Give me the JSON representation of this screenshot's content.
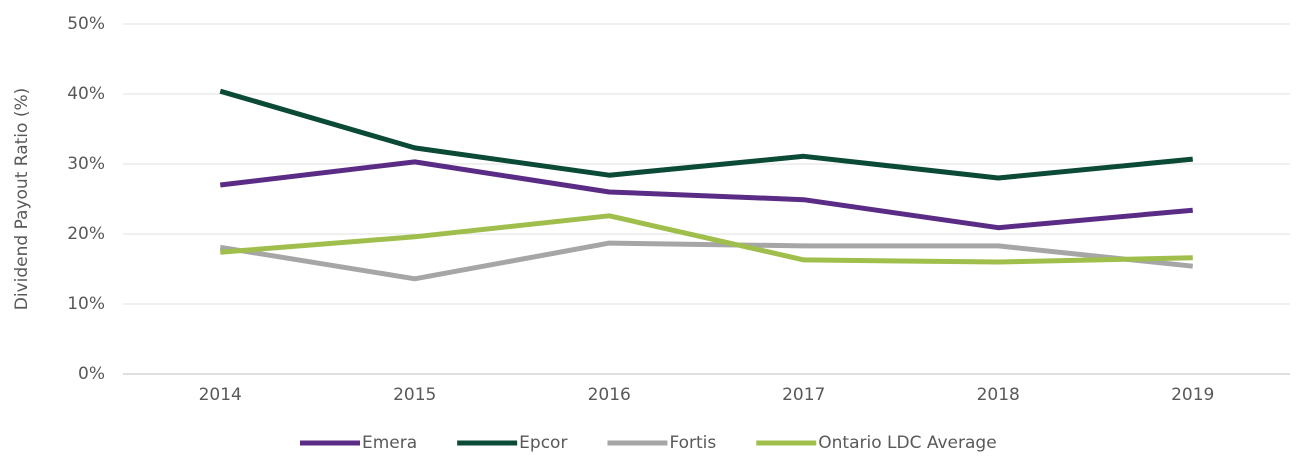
{
  "chart_data": {
    "type": "line",
    "y_label": "Dividend Payout Ratio (%)",
    "categories": [
      "2014",
      "2015",
      "2016",
      "2017",
      "2018",
      "2019"
    ],
    "series": [
      {
        "name": "Emera",
        "color": "#5b2c86",
        "values": [
          27.0,
          30.3,
          26.0,
          24.9,
          20.9,
          23.4
        ]
      },
      {
        "name": "Epcor",
        "color": "#0b4a36",
        "values": [
          40.4,
          32.3,
          28.4,
          31.1,
          28.0,
          30.7
        ]
      },
      {
        "name": "Fortis",
        "color": "#a6a6a6",
        "values": [
          18.1,
          13.6,
          18.7,
          18.3,
          18.3,
          15.4
        ]
      },
      {
        "name": "Ontario LDC Average",
        "color": "#a0be4b",
        "values": [
          17.4,
          19.6,
          22.6,
          16.3,
          16.0,
          16.6
        ]
      }
    ],
    "ylim": [
      0,
      50
    ],
    "yticks": [
      {
        "value": 0,
        "label": "0%"
      },
      {
        "value": 10,
        "label": "10%"
      },
      {
        "value": 20,
        "label": "20%"
      },
      {
        "value": 30,
        "label": "30%"
      },
      {
        "value": 40,
        "label": "40%"
      },
      {
        "value": 50,
        "label": "50%"
      }
    ],
    "grid": true,
    "legend": "bottom"
  }
}
